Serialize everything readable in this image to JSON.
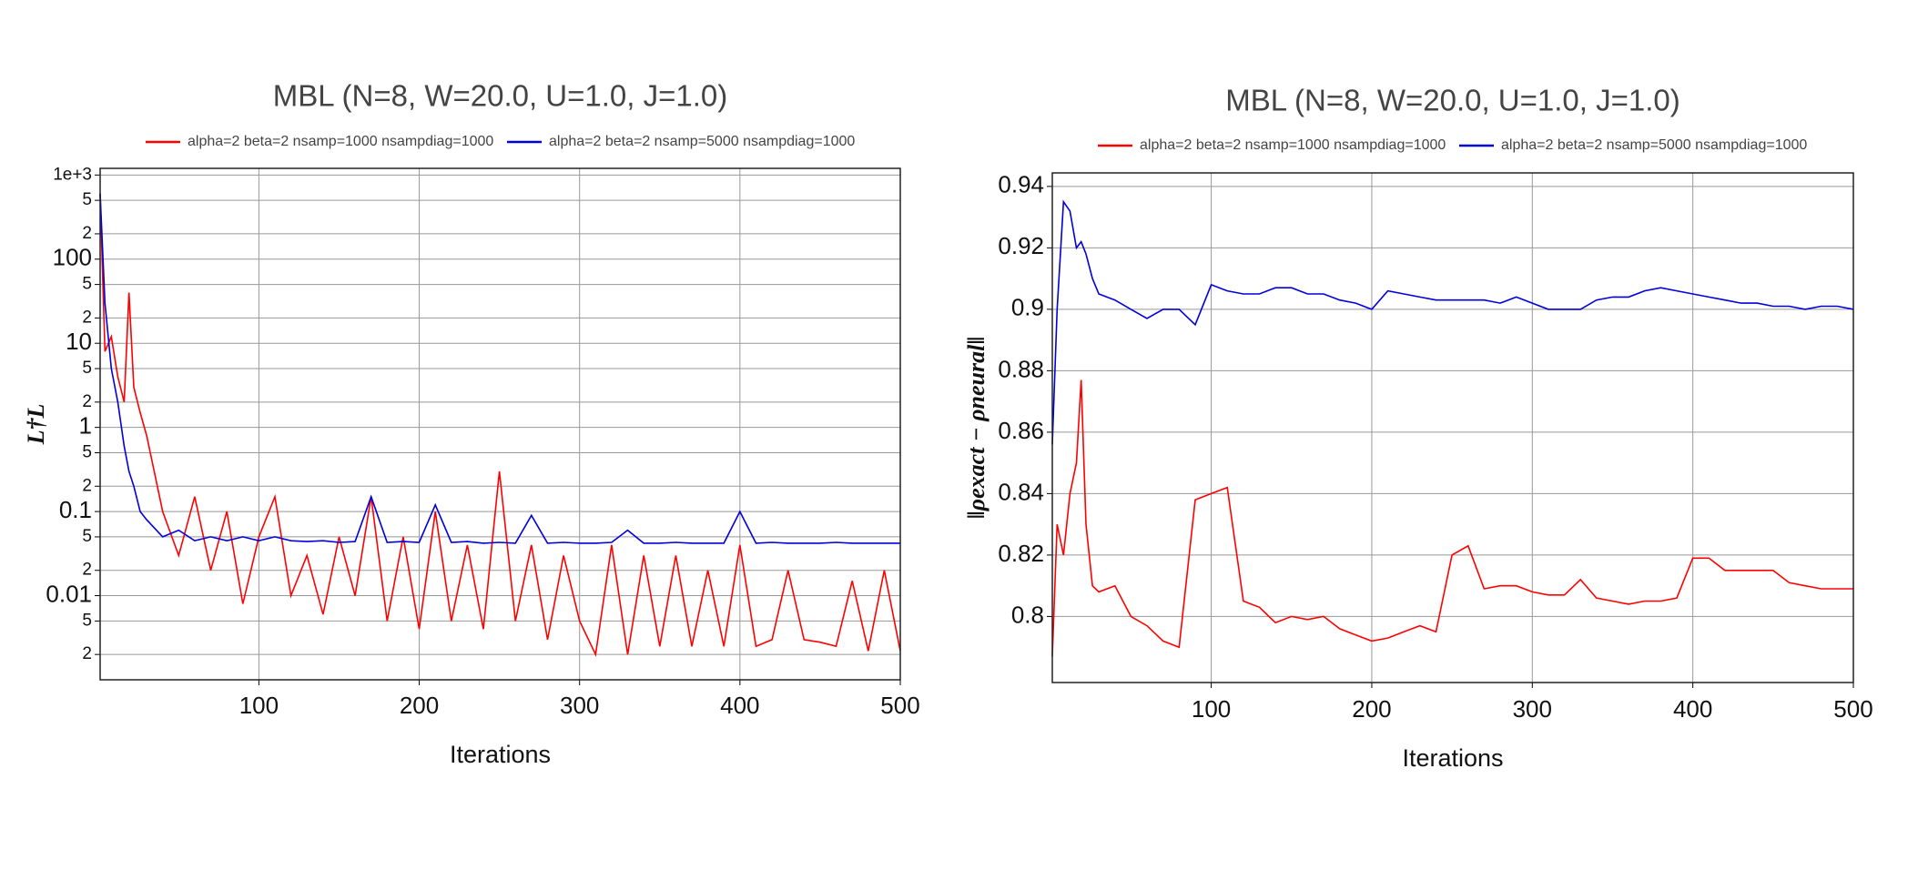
{
  "chart_data": [
    {
      "type": "line",
      "title": "MBL  (N=8, W=20.0, U=1.0, J=1.0)",
      "xlabel": "Iterations",
      "ylabel": "L†L",
      "log_y": true,
      "grid": true,
      "legend": "top",
      "x": [
        1,
        4,
        8,
        12,
        16,
        19,
        22,
        26,
        30,
        40,
        50,
        60,
        70,
        80,
        90,
        100,
        110,
        120,
        130,
        140,
        150,
        160,
        170,
        180,
        190,
        200,
        210,
        220,
        230,
        240,
        250,
        260,
        270,
        280,
        290,
        300,
        310,
        320,
        330,
        340,
        350,
        360,
        370,
        380,
        390,
        400,
        410,
        420,
        430,
        440,
        450,
        460,
        470,
        480,
        490,
        500
      ],
      "xlim": [
        1,
        500
      ],
      "xticks": [
        100,
        200,
        300,
        400,
        500
      ],
      "ylim": [
        0.001,
        1200
      ],
      "yticks": [
        {
          "value": 1000,
          "label": "1e+3"
        },
        {
          "value": 500,
          "label": "5"
        },
        {
          "value": 200,
          "label": "2"
        },
        100,
        {
          "value": 50,
          "label": "5"
        },
        {
          "value": 20,
          "label": "2"
        },
        10,
        {
          "value": 5,
          "label": "5"
        },
        {
          "value": 2,
          "label": "2"
        },
        1,
        {
          "value": 0.5,
          "label": "5"
        },
        {
          "value": 0.2,
          "label": "2"
        },
        0.1,
        {
          "value": 0.05,
          "label": "5"
        },
        {
          "value": 0.02,
          "label": "2"
        },
        0.01,
        {
          "value": 0.005,
          "label": "5"
        },
        {
          "value": 0.002,
          "label": "2"
        }
      ],
      "series": [
        {
          "name": "alpha=2 beta=2 nsamp=1000 nsampdiag=1000",
          "color": "#ff0000",
          "values": [
            600,
            8,
            12,
            4,
            2,
            40,
            3,
            1.5,
            0.8,
            0.1,
            0.03,
            0.15,
            0.02,
            0.1,
            0.008,
            0.05,
            0.15,
            0.01,
            0.03,
            0.006,
            0.05,
            0.01,
            0.15,
            0.005,
            0.05,
            0.004,
            0.1,
            0.005,
            0.04,
            0.004,
            0.3,
            0.005,
            0.04,
            0.003,
            0.03,
            0.005,
            0.002,
            0.04,
            0.002,
            0.03,
            0.0025,
            0.03,
            0.0025,
            0.02,
            0.0025,
            0.04,
            0.0025,
            0.003,
            0.02,
            0.003,
            0.0028,
            0.0025,
            0.015,
            0.0022,
            0.02,
            0.0022
          ]
        },
        {
          "name": "alpha=2 beta=2 nsamp=5000 nsampdiag=1000",
          "color": "#0000dd",
          "values": [
            600,
            30,
            5,
            2,
            0.6,
            0.3,
            0.2,
            0.1,
            0.08,
            0.05,
            0.06,
            0.045,
            0.05,
            0.045,
            0.05,
            0.045,
            0.05,
            0.045,
            0.044,
            0.045,
            0.043,
            0.044,
            0.15,
            0.043,
            0.044,
            0.043,
            0.12,
            0.043,
            0.044,
            0.042,
            0.043,
            0.042,
            0.09,
            0.042,
            0.043,
            0.042,
            0.042,
            0.043,
            0.06,
            0.042,
            0.042,
            0.043,
            0.042,
            0.042,
            0.042,
            0.1,
            0.042,
            0.043,
            0.042,
            0.042,
            0.042,
            0.043,
            0.042,
            0.042,
            0.042,
            0.042
          ]
        }
      ]
    },
    {
      "type": "line",
      "title": "MBL  (N=8, W=20.0, U=1.0, J=1.0)",
      "xlabel": "Iterations",
      "ylabel": "‖ρexact − ρneural‖",
      "log_y": false,
      "grid": true,
      "legend": "top",
      "x": [
        1,
        4,
        8,
        12,
        16,
        19,
        22,
        26,
        30,
        40,
        50,
        60,
        70,
        80,
        90,
        100,
        110,
        120,
        130,
        140,
        150,
        160,
        170,
        180,
        190,
        200,
        210,
        220,
        230,
        240,
        250,
        260,
        270,
        280,
        290,
        300,
        310,
        320,
        330,
        340,
        350,
        360,
        370,
        380,
        390,
        400,
        410,
        420,
        430,
        440,
        450,
        460,
        470,
        480,
        490,
        500
      ],
      "xlim": [
        1,
        500
      ],
      "xticks": [
        100,
        200,
        300,
        400,
        500
      ],
      "ylim": [
        0.7785,
        0.9444
      ],
      "yticks": [
        0.8,
        0.82,
        0.84,
        0.86,
        0.88,
        0.9,
        0.92,
        0.94
      ],
      "series": [
        {
          "name": "alpha=2 beta=2 nsamp=1000 nsampdiag=1000",
          "color": "#ff0000",
          "values": [
            0.787,
            0.83,
            0.82,
            0.84,
            0.85,
            0.877,
            0.83,
            0.81,
            0.808,
            0.81,
            0.8,
            0.797,
            0.792,
            0.79,
            0.838,
            0.84,
            0.842,
            0.805,
            0.803,
            0.798,
            0.8,
            0.799,
            0.8,
            0.796,
            0.794,
            0.792,
            0.793,
            0.795,
            0.797,
            0.795,
            0.82,
            0.823,
            0.809,
            0.81,
            0.81,
            0.808,
            0.807,
            0.807,
            0.812,
            0.806,
            0.805,
            0.804,
            0.805,
            0.805,
            0.806,
            0.819,
            0.819,
            0.815,
            0.815,
            0.815,
            0.815,
            0.811,
            0.81,
            0.809,
            0.809,
            0.809
          ]
        },
        {
          "name": "alpha=2 beta=2 nsamp=5000 nsampdiag=1000",
          "color": "#0000dd",
          "values": [
            0.856,
            0.9,
            0.935,
            0.932,
            0.92,
            0.922,
            0.918,
            0.91,
            0.905,
            0.903,
            0.9,
            0.897,
            0.9,
            0.9,
            0.895,
            0.908,
            0.906,
            0.905,
            0.905,
            0.907,
            0.907,
            0.905,
            0.905,
            0.903,
            0.902,
            0.9,
            0.906,
            0.905,
            0.904,
            0.903,
            0.903,
            0.903,
            0.903,
            0.902,
            0.904,
            0.902,
            0.9,
            0.9,
            0.9,
            0.903,
            0.904,
            0.904,
            0.906,
            0.907,
            0.906,
            0.905,
            0.904,
            0.903,
            0.902,
            0.902,
            0.901,
            0.901,
            0.9,
            0.901,
            0.901,
            0.9
          ]
        }
      ]
    }
  ]
}
